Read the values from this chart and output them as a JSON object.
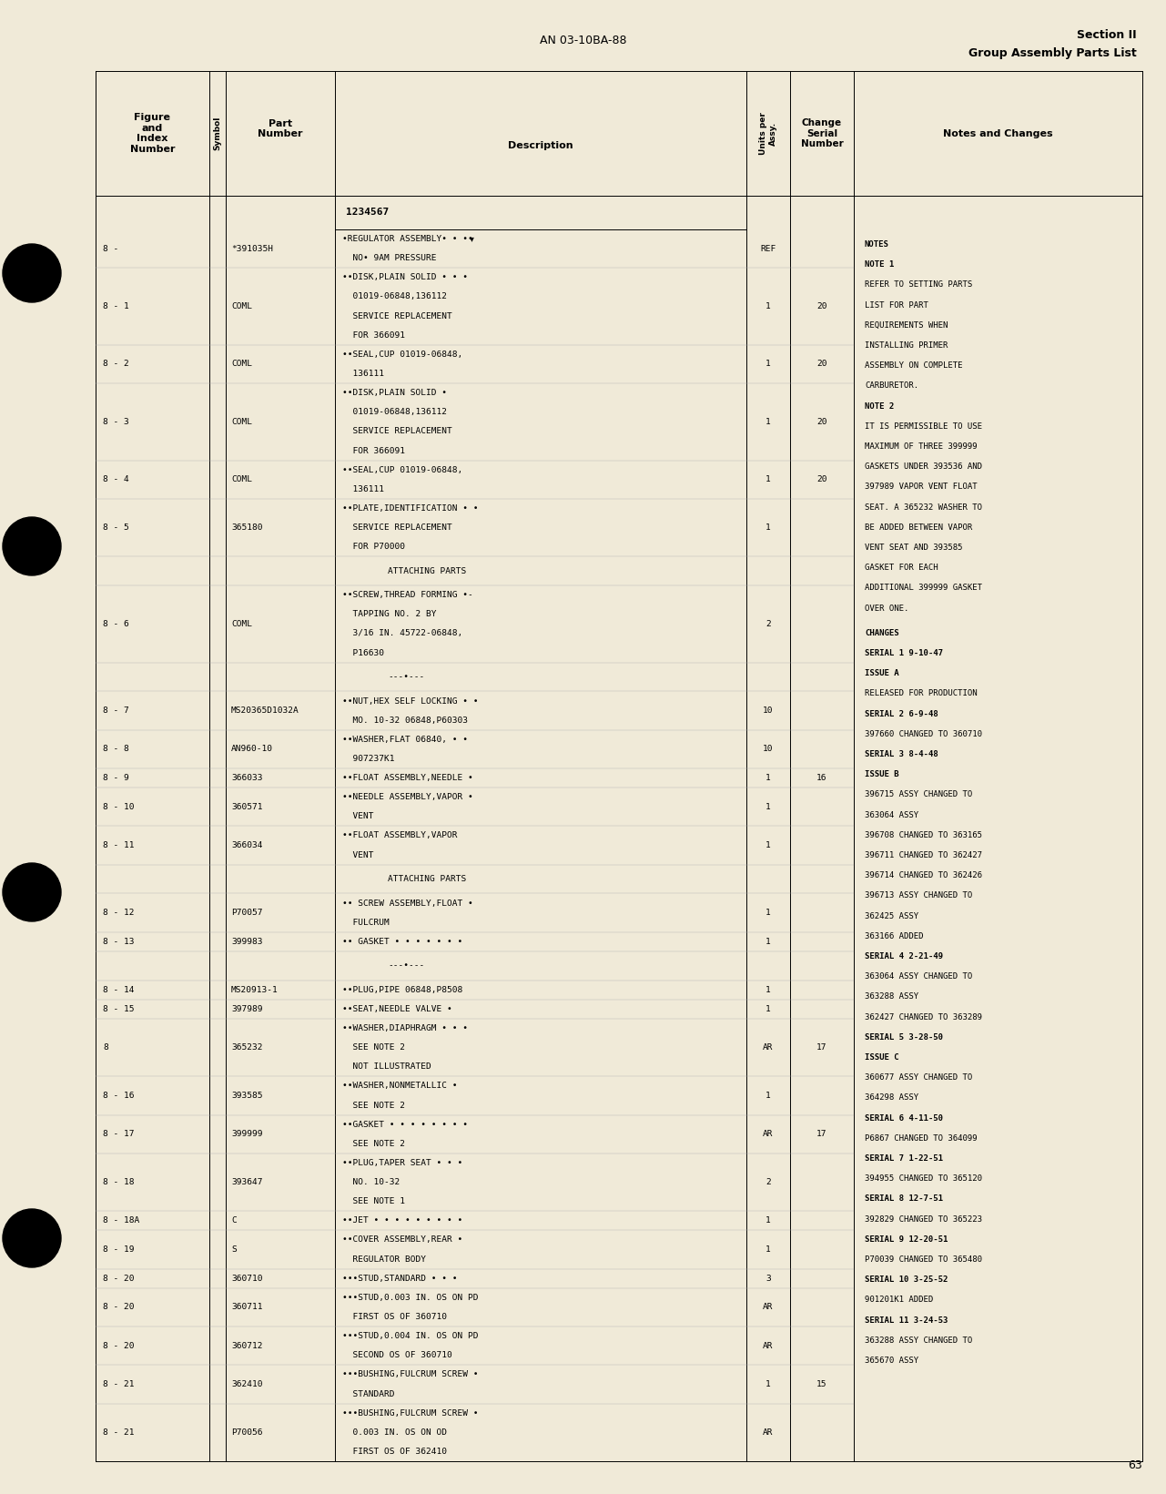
{
  "bg_color": "#f0ead8",
  "top_center_text": "AN 03-10BA-88",
  "top_right_line1": "Section II",
  "top_right_line2": "Group Assembly Parts List",
  "bottom_right_page": "63",
  "table_rows": [
    {
      "fig": "8 -",
      "part": "*391035H",
      "desc": "•REGULATOR ASSEMBLY• • ••\n  NO• 9AM PRESSURE",
      "units": "REF",
      "change": ""
    },
    {
      "fig": "8 - 1",
      "part": "COML",
      "desc": "••DISK,PLAIN SOLID • • •\n  01019-06848,136112\n  SERVICE REPLACEMENT\n  FOR 366091",
      "units": "1",
      "change": "20"
    },
    {
      "fig": "8 - 2",
      "part": "COML",
      "desc": "••SEAL,CUP 01019-06848,\n  136111",
      "units": "1",
      "change": "20"
    },
    {
      "fig": "8 - 3",
      "part": "COML",
      "desc": "••DISK,PLAIN SOLID •\n  01019-06848,136112\n  SERVICE REPLACEMENT\n  FOR 366091",
      "units": "1",
      "change": "20"
    },
    {
      "fig": "8 - 4",
      "part": "COML",
      "desc": "••SEAL,CUP 01019-06848,\n  136111",
      "units": "1",
      "change": "20"
    },
    {
      "fig": "8 - 5",
      "part": "365180",
      "desc": "••PLATE,IDENTIFICATION • •\n  SERVICE REPLACEMENT\n  FOR P70000",
      "units": "1",
      "change": ""
    },
    {
      "fig": "",
      "part": "",
      "desc": "ATTACHING PARTS",
      "units": "",
      "change": "",
      "separator": true
    },
    {
      "fig": "8 - 6",
      "part": "COML",
      "desc": "••SCREW,THREAD FORMING •-\n  TAPPING NO. 2 BY\n  3/16 IN. 45722-06848,\n  P16630",
      "units": "2",
      "change": ""
    },
    {
      "fig": "",
      "part": "",
      "desc": "---•---",
      "units": "",
      "change": "",
      "separator": true
    },
    {
      "fig": "8 - 7",
      "part": "MS20365D1032A",
      "desc": "••NUT,HEX SELF LOCKING • •\n  MO. 10-32 06848,P60303",
      "units": "10",
      "change": ""
    },
    {
      "fig": "8 - 8",
      "part": "AN960-10",
      "desc": "••WASHER,FLAT 06840, • •\n  907237K1",
      "units": "10",
      "change": ""
    },
    {
      "fig": "8 - 9",
      "part": "366033",
      "desc": "••FLOAT ASSEMBLY,NEEDLE •",
      "units": "1",
      "change": "16"
    },
    {
      "fig": "8 - 10",
      "part": "360571",
      "desc": "••NEEDLE ASSEMBLY,VAPOR •\n  VENT",
      "units": "1",
      "change": ""
    },
    {
      "fig": "8 - 11",
      "part": "366034",
      "desc": "••FLOAT ASSEMBLY,VAPOR\n  VENT",
      "units": "1",
      "change": ""
    },
    {
      "fig": "",
      "part": "",
      "desc": "ATTACHING PARTS",
      "units": "",
      "change": "",
      "separator": true
    },
    {
      "fig": "8 - 12",
      "part": "P70057",
      "desc": "•• SCREW ASSEMBLY,FLOAT •\n  FULCRUM",
      "units": "1",
      "change": ""
    },
    {
      "fig": "8 - 13",
      "part": "399983",
      "desc": "•• GASKET • • • • • • •",
      "units": "1",
      "change": ""
    },
    {
      "fig": "",
      "part": "",
      "desc": "---•---",
      "units": "",
      "change": "",
      "separator": true
    },
    {
      "fig": "8 - 14",
      "part": "MS20913-1",
      "desc": "••PLUG,PIPE 06848,P8508",
      "units": "1",
      "change": ""
    },
    {
      "fig": "8 - 15",
      "part": "397989",
      "desc": "••SEAT,NEEDLE VALVE •",
      "units": "1",
      "change": ""
    },
    {
      "fig": "8",
      "part": "365232",
      "desc": "••WASHER,DIAPHRAGM • • •\n  SEE NOTE 2\n  NOT ILLUSTRATED",
      "units": "AR",
      "change": "17"
    },
    {
      "fig": "8 - 16",
      "part": "393585",
      "desc": "••WASHER,NONMETALLIC •\n  SEE NOTE 2",
      "units": "1",
      "change": ""
    },
    {
      "fig": "8 - 17",
      "part": "399999",
      "desc": "••GASKET • • • • • • • •\n  SEE NOTE 2",
      "units": "AR",
      "change": "17"
    },
    {
      "fig": "8 - 18",
      "part": "393647",
      "desc": "••PLUG,TAPER SEAT • • •\n  NO. 10-32\n  SEE NOTE 1",
      "units": "2",
      "change": ""
    },
    {
      "fig": "8 - 18A",
      "part": "C",
      "desc": "••JET • • • • • • • • •",
      "units": "1",
      "change": ""
    },
    {
      "fig": "8 - 19",
      "part": "S",
      "desc": "••COVER ASSEMBLY,REAR •\n  REGULATOR BODY",
      "units": "1",
      "change": ""
    },
    {
      "fig": "8 - 20",
      "part": "360710",
      "desc": "•••STUD,STANDARD • • •",
      "units": "3",
      "change": ""
    },
    {
      "fig": "8 - 20",
      "part": "360711",
      "desc": "•••STUD,0.003 IN. OS ON PD\n  FIRST OS OF 360710",
      "units": "AR",
      "change": ""
    },
    {
      "fig": "8 - 20",
      "part": "360712",
      "desc": "•••STUD,0.004 IN. OS ON PD\n  SECOND OS OF 360710",
      "units": "AR",
      "change": ""
    },
    {
      "fig": "8 - 21",
      "part": "362410",
      "desc": "•••BUSHING,FULCRUM SCREW •\n  STANDARD",
      "units": "1",
      "change": "15"
    },
    {
      "fig": "8 - 21",
      "part": "P70056",
      "desc": "•••BUSHING,FULCRUM SCREW •\n  0.003 IN. OS ON OD\n  FIRST OS OF 362410",
      "units": "AR",
      "change": ""
    }
  ],
  "notes_text": [
    [
      "NOTES",
      true
    ],
    [
      "NOTE 1",
      true
    ],
    [
      "REFER TO SETTING PARTS",
      false
    ],
    [
      "LIST FOR PART",
      false
    ],
    [
      "REQUIREMENTS WHEN",
      false
    ],
    [
      "INSTALLING PRIMER",
      false
    ],
    [
      "ASSEMBLY ON COMPLETE",
      false
    ],
    [
      "CARBURETOR.",
      false
    ],
    [
      "NOTE 2",
      true
    ],
    [
      "IT IS PERMISSIBLE TO USE",
      false
    ],
    [
      "MAXIMUM OF THREE 399999",
      false
    ],
    [
      "GASKETS UNDER 393536 AND",
      false
    ],
    [
      "397989 VAPOR VENT FLOAT",
      false
    ],
    [
      "SEAT. A 365232 WASHER TO",
      false
    ],
    [
      "BE ADDED BETWEEN VAPOR",
      false
    ],
    [
      "VENT SEAT AND 393585",
      false
    ],
    [
      "GASKET FOR EACH",
      false
    ],
    [
      "ADDITIONAL 399999 GASKET",
      false
    ],
    [
      "OVER ONE.",
      false
    ]
  ],
  "changes_text": [
    [
      "CHANGES",
      true
    ],
    [
      "SERIAL 1 9-10-47",
      true
    ],
    [
      "ISSUE A",
      true
    ],
    [
      "RELEASED FOR PRODUCTION",
      false
    ],
    [
      "SERIAL 2 6-9-48",
      true
    ],
    [
      "397660 CHANGED TO 360710",
      false
    ],
    [
      "SERIAL 3 8-4-48",
      true
    ],
    [
      "ISSUE B",
      true
    ],
    [
      "396715 ASSY CHANGED TO",
      false
    ],
    [
      "363064 ASSY",
      false
    ],
    [
      "396708 CHANGED TO 363165",
      false
    ],
    [
      "396711 CHANGED TO 362427",
      false
    ],
    [
      "396714 CHANGED TO 362426",
      false
    ],
    [
      "396713 ASSY CHANGED TO",
      false
    ],
    [
      "362425 ASSY",
      false
    ],
    [
      "363166 ADDED",
      false
    ],
    [
      "SERIAL 4 2-21-49",
      true
    ],
    [
      "363064 ASSY CHANGED TO",
      false
    ],
    [
      "363288 ASSY",
      false
    ],
    [
      "362427 CHANGED TO 363289",
      false
    ],
    [
      "SERIAL 5 3-28-50",
      true
    ],
    [
      "ISSUE C",
      true
    ],
    [
      "360677 ASSY CHANGED TO",
      false
    ],
    [
      "364298 ASSY",
      false
    ],
    [
      "SERIAL 6 4-11-50",
      true
    ],
    [
      "P6867 CHANGED TO 364099",
      false
    ],
    [
      "SERIAL 7 1-22-51",
      true
    ],
    [
      "394955 CHANGED TO 365120",
      false
    ],
    [
      "SERIAL 8 12-7-51",
      true
    ],
    [
      "392829 CHANGED TO 365223",
      false
    ],
    [
      "SERIAL 9 12-20-51",
      true
    ],
    [
      "P70039 CHANGED TO 365480",
      false
    ],
    [
      "SERIAL 10 3-25-52",
      true
    ],
    [
      "901201K1 ADDED",
      false
    ],
    [
      "SERIAL 11 3-24-53",
      true
    ],
    [
      "363288 ASSY CHANGED TO",
      false
    ],
    [
      "365670 ASSY",
      false
    ]
  ]
}
